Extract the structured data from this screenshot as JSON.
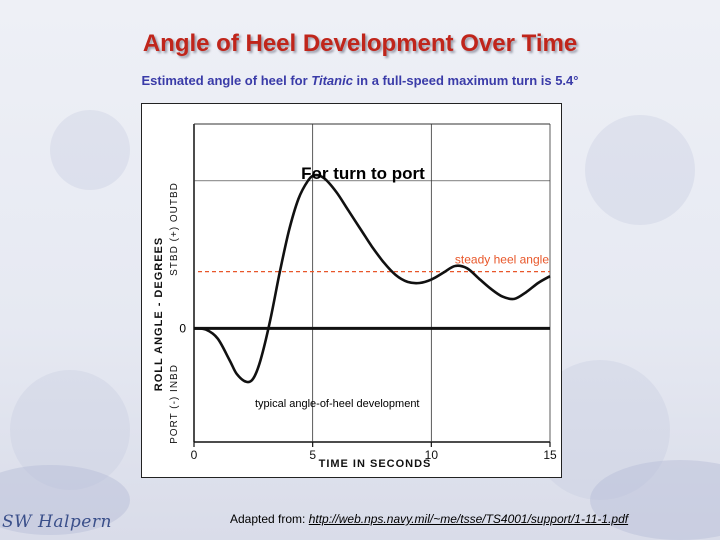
{
  "slide": {
    "title": "Angle of Heel Development Over Time",
    "subtitle_prefix": "Estimated angle of heel for ",
    "subtitle_ship": "Titanic",
    "subtitle_suffix": " in a full-speed maximum turn is 5.4°",
    "caption_prefix": "Adapted from: ",
    "caption_link": "http://web.nps.navy.mil/~me/tsse/TS4001/support/1-11-1.pdf ",
    "signature": "SW Halpern"
  },
  "chart_data": {
    "type": "line",
    "title": "For turn to port",
    "xlabel": "TIME IN SECONDS",
    "ylabel": "ROLL ANGLE - DEGREES",
    "y_upper_label": "STBD (+) OUTBD",
    "y_lower_label": "PORT (-) INBD",
    "y_zero_label": "0",
    "x_ticks": [
      0,
      5,
      10,
      15
    ],
    "x_tick_labels": [
      "0",
      "5",
      "10",
      "15"
    ],
    "xlim": [
      0,
      15
    ],
    "ylim": [
      -5,
      9
    ],
    "series": [
      {
        "name": "typical angle-of-heel development",
        "x": [
          0,
          0.5,
          1.0,
          1.5,
          1.8,
          2.2,
          2.5,
          2.8,
          3.2,
          3.6,
          4.0,
          4.4,
          4.8,
          5.1,
          5.5,
          6.0,
          6.5,
          7.0,
          7.5,
          8.0,
          8.5,
          9.0,
          9.5,
          10.0,
          10.5,
          11.0,
          11.5,
          12.0,
          12.5,
          13.0,
          13.5,
          14.0,
          14.5,
          15.0
        ],
        "y": [
          0,
          -0.05,
          -0.45,
          -1.4,
          -2.0,
          -2.35,
          -2.2,
          -1.4,
          0.3,
          2.4,
          4.3,
          5.7,
          6.5,
          6.75,
          6.6,
          6.0,
          5.2,
          4.4,
          3.6,
          2.9,
          2.35,
          2.05,
          2.0,
          2.15,
          2.45,
          2.75,
          2.65,
          2.2,
          1.75,
          1.4,
          1.3,
          1.6,
          2.0,
          2.3
        ]
      }
    ],
    "reference_line": {
      "label": "steady  heel angle",
      "y": 2.5
    },
    "annotation": "typical angle-of-heel development",
    "colors": {
      "curve": "#111111",
      "reference": "#e8572a",
      "axis": "#111111",
      "grid": "#333333"
    }
  }
}
